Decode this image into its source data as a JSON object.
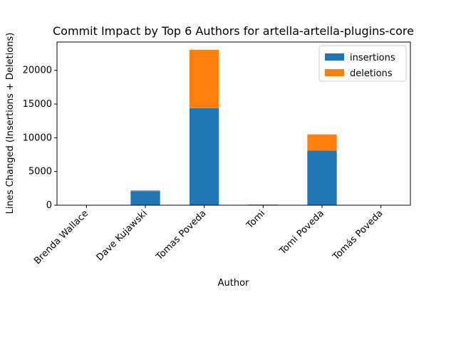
{
  "chart_data": {
    "type": "bar",
    "stacked": true,
    "title": "Commit Impact by Top 6 Authors for artella-artella-plugins-core",
    "xlabel": "Author",
    "ylabel": "Lines Changed (Insertions + Deletions)",
    "categories": [
      "Brenda Wallace",
      "Dave Kujawski",
      "Tomas Poveda",
      "Tomi",
      "Tomi Poveda",
      "Tomás Poveda"
    ],
    "series": [
      {
        "name": "insertions",
        "color": "#1f77b4",
        "values": [
          5,
          2100,
          14400,
          40,
          8100,
          10
        ]
      },
      {
        "name": "deletions",
        "color": "#ff7f0e",
        "values": [
          3,
          100,
          8650,
          60,
          2400,
          5
        ]
      }
    ],
    "yticks": [
      0,
      5000,
      10000,
      15000,
      20000
    ],
    "ylim": [
      0,
      24200
    ],
    "grid": false,
    "legend": "top-right"
  }
}
